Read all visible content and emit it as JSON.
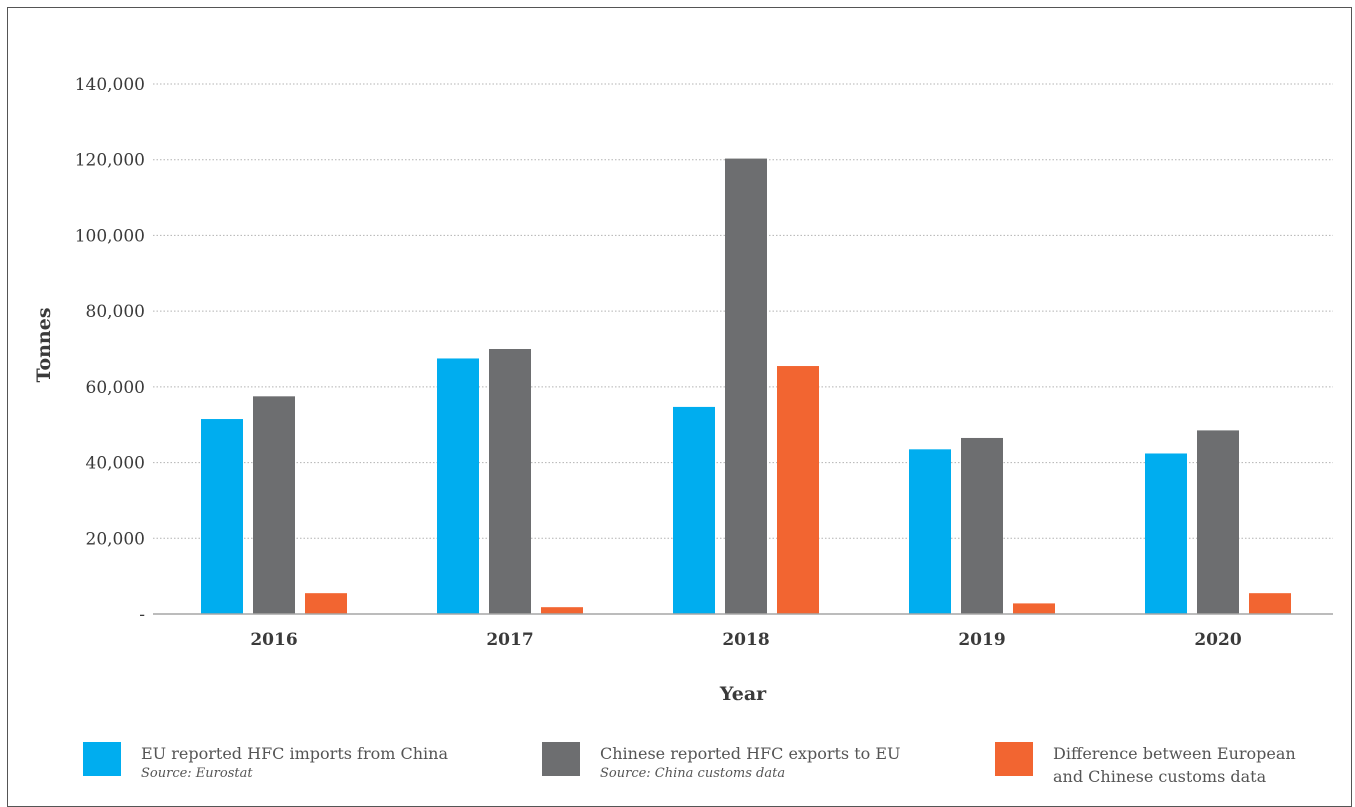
{
  "chart_data": {
    "type": "bar",
    "categories": [
      "2016",
      "2017",
      "2018",
      "2019",
      "2020"
    ],
    "series": [
      {
        "name": "EU reported HFC imports from China",
        "source": "Source: Eurostat",
        "color": "#00adef",
        "values": [
          51500,
          67500,
          54700,
          43500,
          42400
        ]
      },
      {
        "name": "Chinese reported HFC exports to EU",
        "source": "Source: China customs data",
        "color": "#6d6e70",
        "values": [
          57500,
          70000,
          120300,
          46500,
          48500
        ]
      },
      {
        "name": "Difference between European and Chinese customs data",
        "source": "",
        "color": "#f26531",
        "values": [
          5500,
          1800,
          65500,
          2800,
          5500
        ]
      }
    ],
    "xlabel": "Year",
    "ylabel": "Tonnes",
    "ylim": [
      0,
      140000
    ],
    "yticks": [
      {
        "value": 0,
        "label": "-"
      },
      {
        "value": 20000,
        "label": "20,000"
      },
      {
        "value": 40000,
        "label": "40,000"
      },
      {
        "value": 60000,
        "label": "60,000"
      },
      {
        "value": 80000,
        "label": "80,000"
      },
      {
        "value": 100000,
        "label": "100,000"
      },
      {
        "value": 120000,
        "label": "120,000"
      },
      {
        "value": 140000,
        "label": "140,000"
      }
    ],
    "grid": true,
    "legend_position": "bottom"
  },
  "legend": {
    "item1_line1": "EU reported HFC imports from China",
    "item1_source": "Source: Eurostat",
    "item2_line1": "Chinese reported HFC exports to EU",
    "item2_source": "Source: China customs data",
    "item3_line1": "Difference between European",
    "item3_line2": "and Chinese customs data"
  }
}
